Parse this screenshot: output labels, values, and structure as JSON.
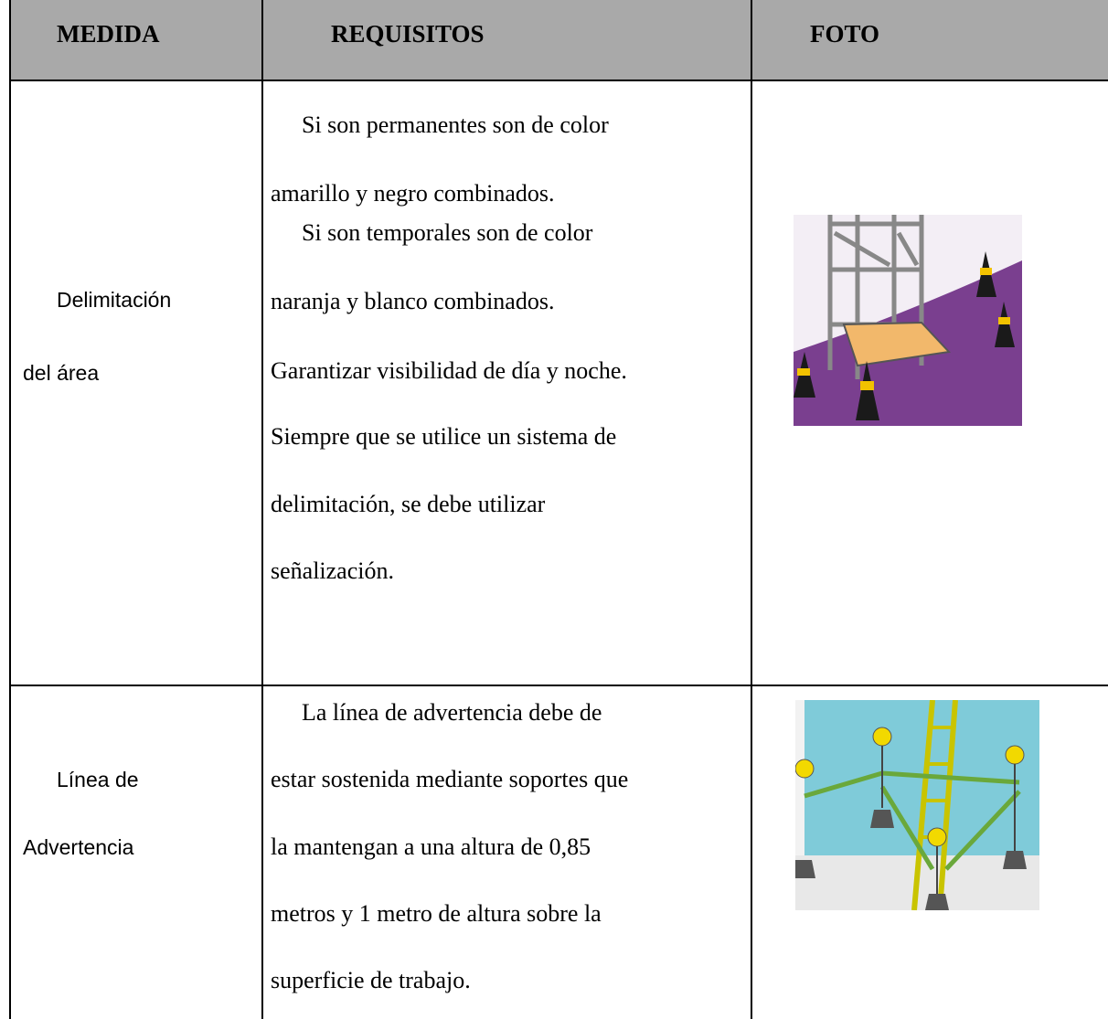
{
  "header": {
    "medida": "MEDIDA",
    "requisitos": "REQUISITOS",
    "foto": "FOTO"
  },
  "rows": [
    {
      "medida": [
        "Delimitación",
        "del área"
      ],
      "requisitos": [
        "Si son permanentes son de color",
        "amarillo y negro combinados.",
        "Si son temporales son de color",
        "naranja y blanco combinados.",
        "Garantizar visibilidad de día y noche.",
        "Siempre que se utilice un sistema de",
        "delimitación, se debe utilizar",
        "señalización."
      ]
    },
    {
      "medida": [
        "Línea de",
        "Advertencia"
      ],
      "requisitos": [
        "La línea de advertencia debe de",
        "estar sostenida mediante soportes que",
        "la mantengan a una altura de 0,85",
        "metros y 1 metro de altura sobre la",
        "superficie de trabajo."
      ]
    }
  ]
}
